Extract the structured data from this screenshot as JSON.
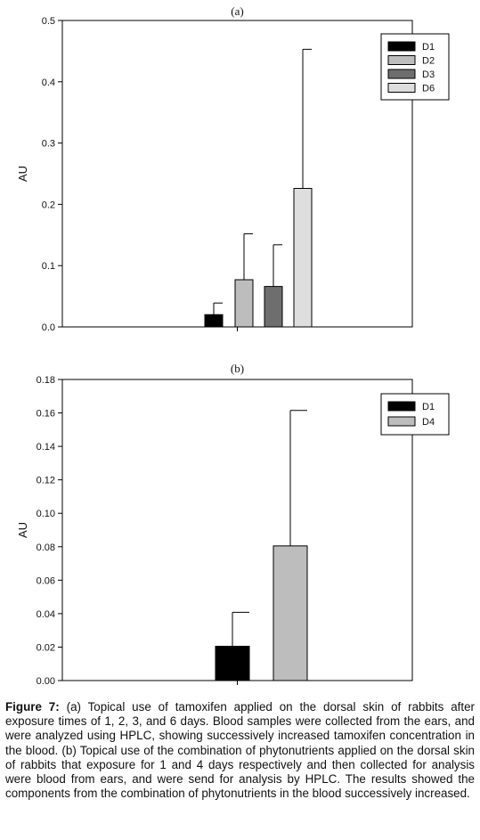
{
  "chart_data": [
    {
      "type": "bar",
      "title": "(a)",
      "xlabel": "",
      "ylabel": "AU",
      "ylim": [
        0,
        0.5
      ],
      "yticks": [
        "0.0",
        "0.1",
        "0.2",
        "0.3",
        "0.4",
        "0.5"
      ],
      "grid": false,
      "legend_position": "top-right",
      "series": [
        {
          "name": "D1",
          "value": 0.02,
          "error": 0.019,
          "color": "#000000"
        },
        {
          "name": "D2",
          "value": 0.077,
          "error": 0.075,
          "color": "#bdbdbd"
        },
        {
          "name": "D3",
          "value": 0.066,
          "error": 0.068,
          "color": "#6e6e6e"
        },
        {
          "name": "D6",
          "value": 0.226,
          "error": 0.227,
          "color": "#dedede"
        }
      ]
    },
    {
      "type": "bar",
      "title": "(b)",
      "xlabel": "",
      "ylabel": "AU",
      "ylim": [
        0,
        0.18
      ],
      "yticks": [
        "0.00",
        "0.02",
        "0.04",
        "0.06",
        "0.08",
        "0.10",
        "0.12",
        "0.14",
        "0.16",
        "0.18"
      ],
      "grid": false,
      "legend_position": "top-right",
      "series": [
        {
          "name": "D1",
          "value": 0.0205,
          "error": 0.0203,
          "color": "#000000"
        },
        {
          "name": "D4",
          "value": 0.0805,
          "error": 0.081,
          "color": "#bdbdbd"
        }
      ]
    }
  ],
  "caption": {
    "label": "Figure 7:",
    "text": " (a) Topical use of tamoxifen applied on the dorsal skin of rabbits after exposure times of 1, 2, 3, and 6 days. Blood samples were collected from the ears, and were analyzed using HPLC, showing successively increased tamoxifen concentration in the blood. (b) Topical use of the combination of phytonutrients applied on the dorsal skin of rabbits that exposure for 1 and 4 days respectively and then collected for analysis were blood from ears, and were send for analysis by HPLC. The results showed the components from the combination of phytonutrients in the blood successively increased."
  }
}
